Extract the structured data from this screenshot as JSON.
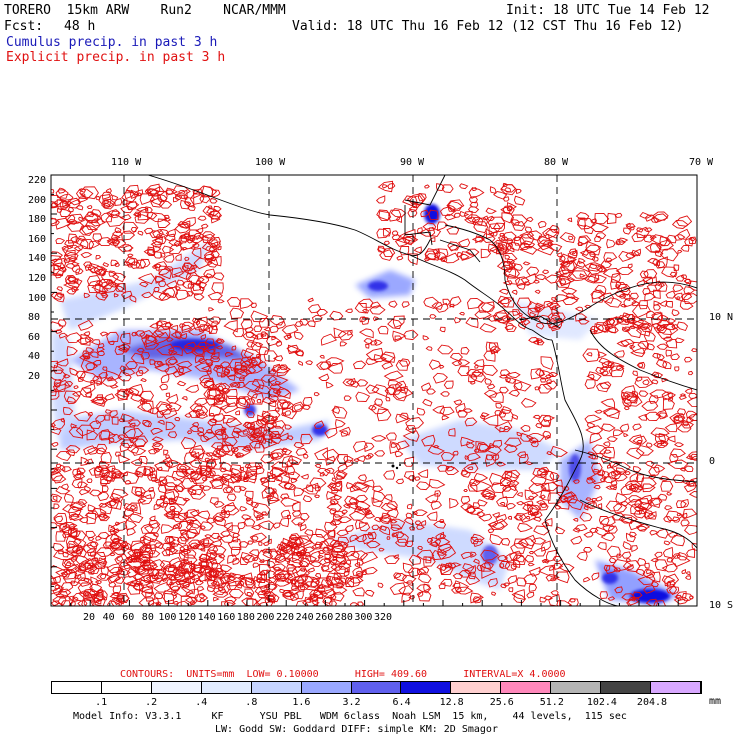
{
  "header": {
    "title_left": "TORERO  15km ARW    Run2    NCAR/MMM",
    "fcst_label": "Fcst:",
    "fcst_value": "48 h",
    "init": "Init: 18 UTC Tue 14 Feb 12",
    "valid": "Valid: 18 UTC Thu 16 Feb 12 (12 CST Thu 16 Feb 12)",
    "line1": "Cumulus precip. in past 3 h",
    "line2": "Explicit precip. in past 3 h"
  },
  "colors": {
    "cumulus": "#1a1ab8",
    "explicit": "#e01010",
    "grid": "#000000",
    "coast": "#000000"
  },
  "axes": {
    "top_lon_labels": [
      "110 W",
      "100 W",
      "90 W",
      "80 W",
      "70 W"
    ],
    "right_lat_labels": [
      "10 N",
      "0",
      "10 S"
    ],
    "y_ticks": [
      "220",
      "200",
      "180",
      "160",
      "140",
      "120",
      "100",
      "80",
      "60",
      "40",
      "20"
    ],
    "x_ticks": [
      "20",
      "40",
      "60",
      "80",
      "100",
      "120",
      "140",
      "160",
      "180",
      "200",
      "220",
      "240",
      "260",
      "280",
      "300",
      "320"
    ]
  },
  "contours": {
    "prefix": "CONTOURS:",
    "units": "UNITS=mm",
    "low": "LOW= 0.10000",
    "high": "HIGH= 409.60",
    "interval": "INTERVAL=X 4.0000"
  },
  "colorbar": {
    "labels": [
      ".1",
      ".2",
      ".4",
      ".8",
      "1.6",
      "3.2",
      "6.4",
      "12.8",
      "25.6",
      "51.2",
      "102.4",
      "204.8"
    ],
    "unit": "mm",
    "colors": [
      "#ffffff",
      "#ffffff",
      "#f0f4ff",
      "#e2ecff",
      "#c6d4ff",
      "#9aa8ff",
      "#6060ee",
      "#1010e0",
      "#ffd0d0",
      "#ff88bb",
      "#b4b4b4",
      "#444444",
      "#d8a8ff"
    ]
  },
  "footer": {
    "line1": "Model Info: V3.3.1     KF      YSU PBL   WDM 6class  Noah LSM  15 km,    44 levels,  115 sec",
    "line2": "LW: Godd SW: Goddard DIFF: simple KM: 2D Smagor"
  }
}
